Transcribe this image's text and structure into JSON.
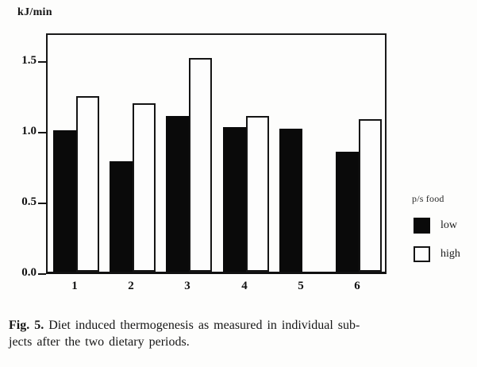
{
  "figure": {
    "unit_label": "kJ/min",
    "caption": {
      "prefix": "Fig. 5.",
      "line1": " Diet induced thermogenesis as measured in individual sub-",
      "line2": "jects after the two dietary periods."
    }
  },
  "legend": {
    "title": "p/s food",
    "items": [
      {
        "label": "low",
        "fill": "#0a0a0a"
      },
      {
        "label": "high",
        "fill": "#fdfdfd"
      }
    ]
  },
  "chart_data": {
    "type": "bar",
    "title": "",
    "xlabel": "",
    "ylabel": "kJ/min",
    "categories": [
      "1",
      "2",
      "3",
      "4",
      "5",
      "6"
    ],
    "series": [
      {
        "name": "low",
        "color": "#0a0a0a",
        "values": [
          1.0,
          0.78,
          1.1,
          1.02,
          1.01,
          0.85
        ]
      },
      {
        "name": "high",
        "color": "#fdfdfd",
        "values": [
          1.24,
          1.19,
          1.51,
          1.1,
          null,
          1.08
        ]
      }
    ],
    "yticks": [
      {
        "value": 0.0,
        "label": "0.0"
      },
      {
        "value": 0.5,
        "label": "0.5"
      },
      {
        "value": 1.0,
        "label": "1.0"
      },
      {
        "value": 1.5,
        "label": "1.5"
      }
    ],
    "ylim": [
      0,
      1.7
    ],
    "grid": false,
    "legend_position": "right"
  }
}
